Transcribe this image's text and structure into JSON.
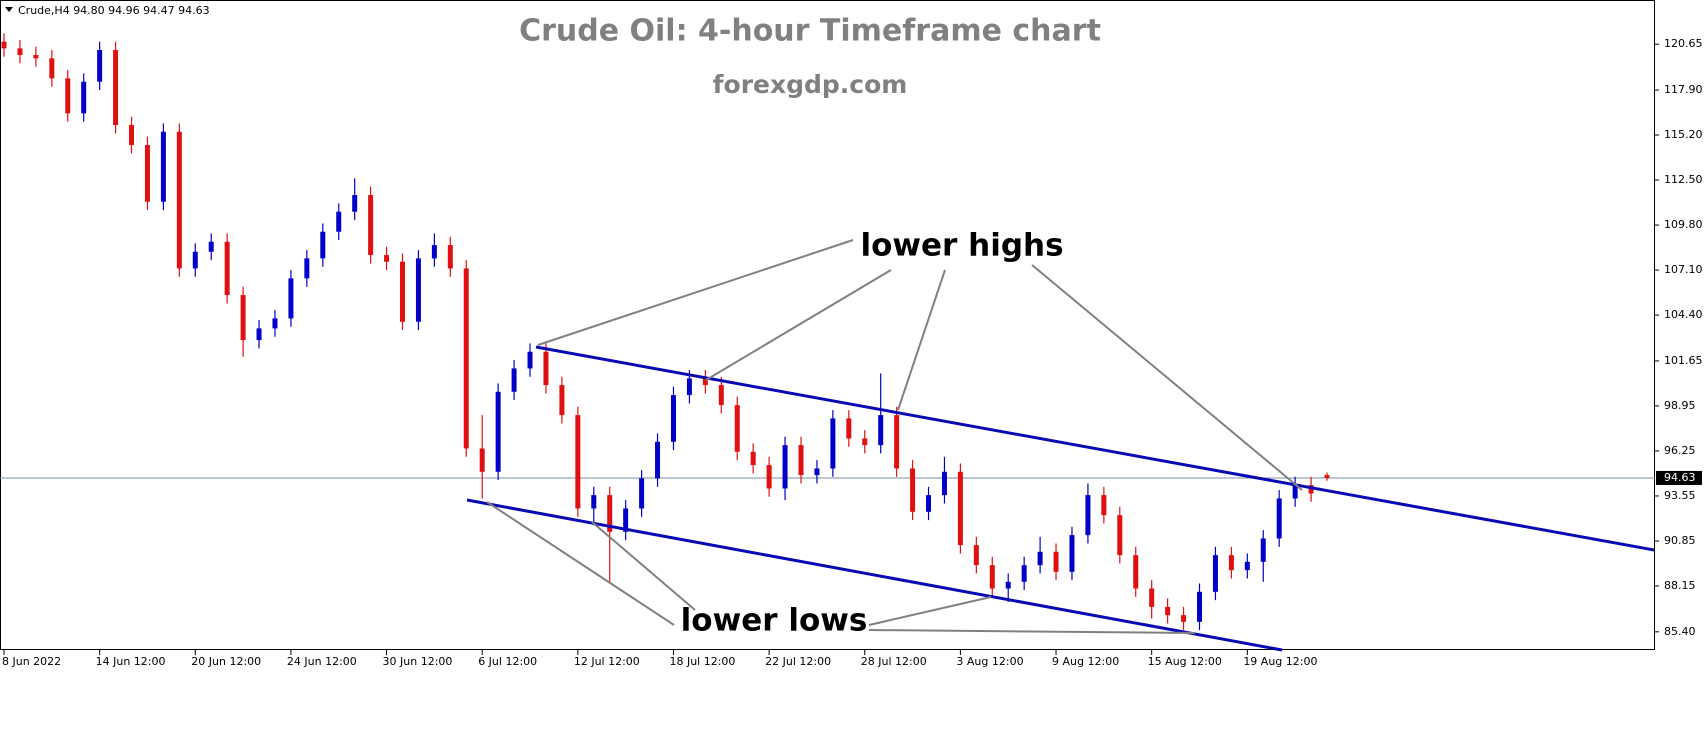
{
  "chart_data": {
    "type": "candlestick",
    "symbol_info": "Crude,H4  94.80 94.96 94.47 94.63",
    "title": "Crude Oil: 4-hour Timeframe chart",
    "subtitle": "forexgdp.com",
    "annotations": [
      "lower highs",
      "lower lows"
    ],
    "categories": [
      "8 Jun 2022",
      null,
      null,
      null,
      null,
      null,
      "14 Jun 12:00",
      null,
      null,
      null,
      null,
      null,
      "20 Jun 12:00",
      null,
      null,
      null,
      null,
      null,
      "24 Jun 12:00",
      null,
      null,
      null,
      null,
      null,
      "30 Jun 12:00",
      null,
      null,
      null,
      null,
      null,
      "6 Jul 12:00",
      null,
      null,
      null,
      null,
      null,
      "12 Jul 12:00",
      null,
      null,
      null,
      null,
      null,
      "18 Jul 12:00",
      null,
      null,
      null,
      null,
      null,
      "22 Jul 12:00",
      null,
      null,
      null,
      null,
      null,
      "28 Jul 12:00",
      null,
      null,
      null,
      null,
      null,
      "3 Aug 12:00",
      null,
      null,
      null,
      null,
      null,
      "9 Aug 12:00",
      null,
      null,
      null,
      null,
      null,
      "15 Aug 12:00",
      null,
      null,
      null,
      null,
      null,
      "19 Aug 12:00",
      null,
      null,
      null,
      null,
      null
    ],
    "open": [
      120.8,
      120.4,
      120.0,
      119.8,
      118.6,
      116.5,
      118.4,
      120.3,
      115.8,
      114.6,
      111.2,
      115.4,
      107.2,
      108.2,
      108.8,
      105.6,
      102.9,
      103.6,
      104.2,
      106.6,
      107.8,
      109.4,
      110.6,
      111.6,
      108.0,
      107.6,
      104.0,
      107.8,
      108.6,
      107.2,
      96.4,
      95.0,
      99.8,
      101.2,
      102.2,
      100.2,
      98.4,
      92.8,
      93.6,
      91.4,
      92.8,
      94.6,
      96.8,
      99.6,
      100.6,
      100.2,
      99.0,
      96.2,
      95.4,
      94.0,
      96.6,
      94.8,
      95.2,
      98.2,
      97.0,
      96.6,
      98.4,
      95.2,
      92.6,
      93.6,
      95.0,
      90.6,
      89.4,
      88.0,
      88.4,
      89.4,
      90.2,
      89.0,
      91.2,
      93.6,
      92.4,
      90.0,
      88.0,
      86.9,
      86.4,
      86.0,
      87.8,
      90.0,
      89.1,
      89.6,
      91.0,
      93.4,
      94.2,
      94.8
    ],
    "high": [
      121.3,
      120.9,
      120.5,
      120.3,
      119.1,
      118.9,
      120.8,
      120.8,
      116.3,
      115.1,
      115.9,
      115.9,
      108.7,
      109.3,
      109.3,
      106.1,
      104.1,
      104.7,
      107.1,
      108.3,
      109.9,
      111.1,
      112.6,
      112.1,
      108.5,
      108.1,
      108.3,
      109.3,
      109.1,
      107.7,
      98.4,
      100.3,
      101.7,
      102.7,
      102.7,
      100.7,
      98.9,
      94.1,
      94.1,
      93.3,
      95.1,
      97.3,
      100.1,
      101.1,
      101.1,
      100.7,
      99.5,
      96.7,
      95.9,
      97.1,
      97.1,
      95.7,
      98.7,
      98.7,
      97.5,
      100.9,
      98.9,
      95.7,
      94.1,
      95.9,
      95.5,
      91.1,
      89.9,
      88.9,
      89.9,
      91.1,
      90.7,
      91.7,
      94.3,
      94.1,
      92.9,
      90.5,
      88.5,
      87.4,
      86.9,
      88.3,
      90.5,
      90.5,
      90.1,
      91.5,
      93.9,
      94.7,
      94.7,
      94.96
    ],
    "low": [
      119.9,
      119.5,
      119.3,
      118.1,
      116.0,
      116.0,
      117.9,
      115.3,
      114.1,
      110.7,
      110.7,
      106.7,
      106.7,
      107.7,
      105.1,
      101.9,
      102.4,
      103.1,
      103.7,
      106.1,
      107.3,
      108.9,
      110.1,
      107.5,
      107.1,
      103.5,
      103.5,
      107.3,
      106.7,
      95.9,
      93.4,
      94.5,
      99.3,
      100.7,
      99.7,
      97.9,
      92.3,
      91.8,
      88.3,
      90.9,
      92.3,
      94.1,
      96.3,
      99.1,
      99.7,
      98.5,
      95.7,
      94.9,
      93.5,
      93.3,
      94.3,
      94.3,
      94.7,
      96.5,
      96.1,
      96.1,
      94.7,
      92.1,
      92.1,
      93.1,
      90.1,
      88.9,
      87.5,
      87.2,
      87.9,
      88.9,
      88.5,
      88.5,
      90.7,
      91.9,
      89.5,
      87.5,
      86.2,
      85.9,
      85.5,
      85.5,
      87.3,
      88.6,
      88.6,
      88.4,
      90.5,
      92.9,
      93.2,
      94.47
    ],
    "close": [
      120.4,
      120.0,
      119.8,
      118.6,
      116.5,
      118.4,
      120.3,
      115.8,
      114.6,
      111.2,
      115.4,
      107.2,
      108.2,
      108.8,
      105.6,
      102.9,
      103.6,
      104.2,
      106.6,
      107.8,
      109.4,
      110.6,
      111.6,
      108.0,
      107.6,
      104.0,
      107.8,
      108.6,
      107.2,
      96.4,
      95.0,
      99.8,
      101.2,
      102.2,
      100.2,
      98.4,
      92.8,
      93.6,
      91.4,
      92.8,
      94.6,
      96.8,
      99.6,
      100.6,
      100.2,
      99.0,
      96.2,
      95.4,
      94.0,
      96.6,
      94.8,
      95.2,
      98.2,
      97.0,
      96.6,
      98.4,
      95.2,
      92.6,
      93.6,
      95.0,
      90.6,
      89.4,
      88.0,
      88.4,
      89.4,
      90.2,
      89.0,
      91.2,
      93.6,
      92.4,
      90.0,
      88.0,
      86.9,
      86.4,
      86.0,
      87.8,
      90.0,
      89.1,
      89.6,
      91.0,
      93.4,
      94.2,
      93.7,
      94.63
    ],
    "up_color": "#0000c8",
    "down_color": "#e01010",
    "last_price": 94.63,
    "ylim": [
      84.31,
      123.3
    ],
    "yticks": [
      {
        "value": 85.4,
        "label": "85.40"
      },
      88.15,
      90.85,
      93.55,
      96.25,
      98.95,
      101.65,
      {
        "value": 104.4,
        "label": "104.40"
      },
      {
        "value": 107.1,
        "label": "107.10"
      },
      {
        "value": 109.8,
        "label": "109.80"
      },
      {
        "value": 112.5,
        "label": "112.50"
      },
      {
        "value": 115.2,
        "label": "115.20"
      },
      {
        "value": 117.9,
        "label": "117.90"
      },
      120.65
    ],
    "grid": false
  }
}
